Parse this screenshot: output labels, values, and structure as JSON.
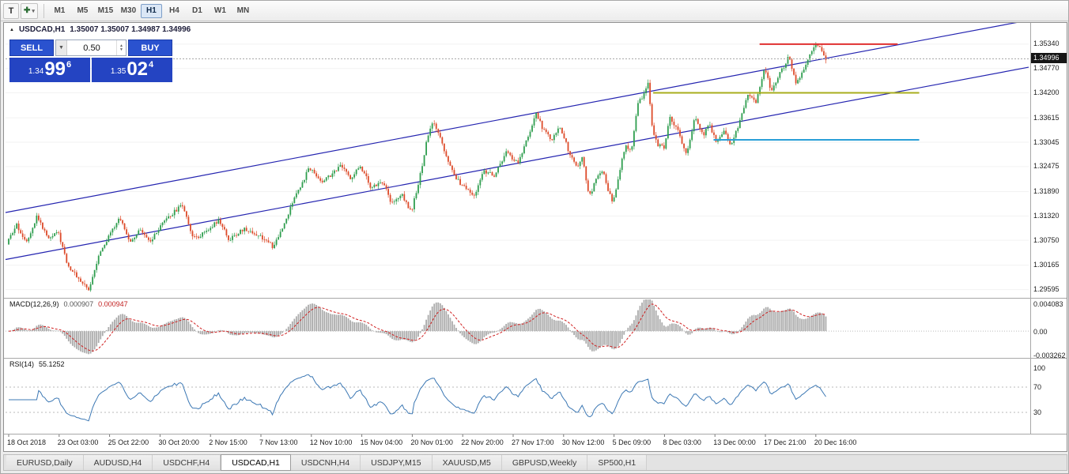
{
  "toolbar": {
    "tool_t_label": "T",
    "crosshair_glyph": "✚",
    "dropdown_glyph": "▾",
    "timeframes": [
      {
        "label": "M1",
        "active": false
      },
      {
        "label": "M5",
        "active": false
      },
      {
        "label": "M15",
        "active": false
      },
      {
        "label": "M30",
        "active": false
      },
      {
        "label": "H1",
        "active": true
      },
      {
        "label": "H4",
        "active": false
      },
      {
        "label": "D1",
        "active": false
      },
      {
        "label": "W1",
        "active": false
      },
      {
        "label": "MN",
        "active": false
      }
    ]
  },
  "chart": {
    "symbol_period": "USDCAD,H1",
    "ohlc": "1.35007 1.35007 1.34987 1.34996",
    "current_price": "1.34996",
    "price_axis_labels": [
      "1.35340",
      "1.34770",
      "1.34200",
      "1.33615",
      "1.33045",
      "1.32475",
      "1.31890",
      "1.31320",
      "1.30750",
      "1.30165",
      "1.29595"
    ],
    "time_axis_labels": [
      "18 Oct 2018",
      "23 Oct 03:00",
      "25 Oct 22:00",
      "30 Oct 20:00",
      "2 Nov 15:00",
      "7 Nov 13:00",
      "12 Nov 10:00",
      "15 Nov 04:00",
      "20 Nov 01:00",
      "22 Nov 20:00",
      "27 Nov 17:00",
      "30 Nov 12:00",
      "5 Dec 09:00",
      "8 Dec 03:00",
      "13 Dec 00:00",
      "17 Dec 21:00",
      "20 Dec 16:00"
    ]
  },
  "trade_panel": {
    "sell_label": "SELL",
    "buy_label": "BUY",
    "volume": "0.50",
    "sell_price": {
      "big": "1.34",
      "pips": "99",
      "sup": "6"
    },
    "buy_price": {
      "big": "1.35",
      "pips": "02",
      "sup": "4"
    }
  },
  "macd": {
    "label": "MACD(12,26,9)",
    "value_main": "0.000907",
    "value_signal": "0.000947",
    "axis": [
      "0.004083",
      "0.00",
      "-0.003262"
    ]
  },
  "rsi": {
    "label": "RSI(14)",
    "value": "55.1252",
    "axis": [
      "100",
      "70",
      "30"
    ]
  },
  "tabs": [
    {
      "label": "EURUSD,Daily",
      "active": false
    },
    {
      "label": "AUDUSD,H4",
      "active": false
    },
    {
      "label": "USDCHF,H4",
      "active": false
    },
    {
      "label": "USDCAD,H1",
      "active": true
    },
    {
      "label": "USDCNH,H4",
      "active": false
    },
    {
      "label": "USDJPY,M15",
      "active": false
    },
    {
      "label": "XAUUSD,M5",
      "active": false
    },
    {
      "label": "GBPUSD,Weekly",
      "active": false
    },
    {
      "label": "SP500,H1",
      "active": false
    }
  ],
  "chart_data": {
    "type": "candlestick",
    "symbol": "USDCAD",
    "timeframe": "H1",
    "price_range": [
      1.2944,
      1.358
    ],
    "candle_count": 410,
    "path_keypoints": [
      [
        0.0,
        1.3065
      ],
      [
        0.012,
        1.311
      ],
      [
        0.024,
        1.3072
      ],
      [
        0.037,
        1.3132
      ],
      [
        0.05,
        1.308
      ],
      [
        0.062,
        1.3098
      ],
      [
        0.075,
        1.3015
      ],
      [
        0.1,
        1.2958
      ],
      [
        0.112,
        1.304
      ],
      [
        0.138,
        1.3128
      ],
      [
        0.15,
        1.3072
      ],
      [
        0.162,
        1.3098
      ],
      [
        0.175,
        1.307
      ],
      [
        0.195,
        1.3125
      ],
      [
        0.215,
        1.3158
      ],
      [
        0.228,
        1.3078
      ],
      [
        0.245,
        1.3098
      ],
      [
        0.258,
        1.3122
      ],
      [
        0.272,
        1.3076
      ],
      [
        0.29,
        1.3102
      ],
      [
        0.31,
        1.3085
      ],
      [
        0.326,
        1.3058
      ],
      [
        0.34,
        1.312
      ],
      [
        0.355,
        1.319
      ],
      [
        0.37,
        1.3245
      ],
      [
        0.385,
        1.3212
      ],
      [
        0.408,
        1.3248
      ],
      [
        0.42,
        1.322
      ],
      [
        0.432,
        1.325
      ],
      [
        0.445,
        1.3195
      ],
      [
        0.458,
        1.3215
      ],
      [
        0.47,
        1.316
      ],
      [
        0.482,
        1.3185
      ],
      [
        0.494,
        1.314
      ],
      [
        0.505,
        1.323
      ],
      [
        0.514,
        1.332
      ],
      [
        0.521,
        1.335
      ],
      [
        0.53,
        1.331
      ],
      [
        0.54,
        1.325
      ],
      [
        0.551,
        1.3215
      ],
      [
        0.561,
        1.3195
      ],
      [
        0.571,
        1.318
      ],
      [
        0.582,
        1.324
      ],
      [
        0.595,
        1.3225
      ],
      [
        0.61,
        1.328
      ],
      [
        0.625,
        1.3255
      ],
      [
        0.637,
        1.332
      ],
      [
        0.646,
        1.337
      ],
      [
        0.655,
        1.3335
      ],
      [
        0.665,
        1.331
      ],
      [
        0.675,
        1.334
      ],
      [
        0.685,
        1.329
      ],
      [
        0.695,
        1.3245
      ],
      [
        0.703,
        1.327
      ],
      [
        0.711,
        1.3175
      ],
      [
        0.719,
        1.3215
      ],
      [
        0.727,
        1.324
      ],
      [
        0.734,
        1.3195
      ],
      [
        0.74,
        1.3165
      ],
      [
        0.748,
        1.323
      ],
      [
        0.755,
        1.33
      ],
      [
        0.763,
        1.3285
      ],
      [
        0.77,
        1.339
      ],
      [
        0.778,
        1.342
      ],
      [
        0.783,
        1.3445
      ],
      [
        0.788,
        1.334
      ],
      [
        0.794,
        1.33
      ],
      [
        0.802,
        1.329
      ],
      [
        0.81,
        1.3365
      ],
      [
        0.82,
        1.333
      ],
      [
        0.83,
        1.327
      ],
      [
        0.84,
        1.336
      ],
      [
        0.85,
        1.332
      ],
      [
        0.858,
        1.3345
      ],
      [
        0.866,
        1.3305
      ],
      [
        0.875,
        1.333
      ],
      [
        0.884,
        1.33
      ],
      [
        0.894,
        1.3345
      ],
      [
        0.905,
        1.342
      ],
      [
        0.914,
        1.3395
      ],
      [
        0.925,
        1.348
      ],
      [
        0.933,
        1.3425
      ],
      [
        0.944,
        1.3465
      ],
      [
        0.955,
        1.3505
      ],
      [
        0.964,
        1.344
      ],
      [
        0.974,
        1.3475
      ],
      [
        0.988,
        1.354
      ],
      [
        1.0,
        1.35
      ]
    ],
    "trendlines": [
      {
        "p1": 1.303,
        "p2": 1.348,
        "color": "#2424b0"
      },
      {
        "p1": 1.314,
        "p2": 1.359,
        "color": "#2424b0"
      }
    ],
    "hlines": [
      {
        "price": 1.3534,
        "x1": 0.737,
        "x2": 0.872,
        "color": "#e03030"
      },
      {
        "price": 1.342,
        "x1": 0.633,
        "x2": 0.893,
        "color": "#a8ae1e"
      },
      {
        "price": 1.331,
        "x1": 0.692,
        "x2": 0.893,
        "color": "#2a9fd8"
      }
    ],
    "colors": {
      "up": "#2f9e4f",
      "down": "#dd4b2a",
      "channel": "#2424b0",
      "macd_hist": "#ababab",
      "macd_signal": "#d02020",
      "rsi_line": "#3c78b4",
      "grid": "#f2f2f2",
      "axis_line": "#a8a8a8"
    },
    "indicators": [
      {
        "name": "MACD",
        "params": [
          12,
          26,
          9
        ],
        "last_values": [
          0.000907,
          0.000947
        ],
        "range": [
          -0.0034,
          0.0041
        ]
      },
      {
        "name": "RSI",
        "params": [
          14
        ],
        "last_value": 55.1252,
        "levels": [
          30,
          70
        ],
        "range": [
          0,
          110
        ]
      }
    ]
  }
}
